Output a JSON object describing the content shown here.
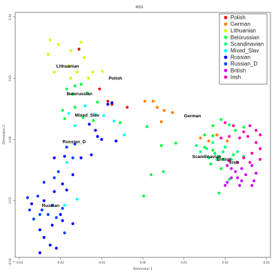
{
  "chart_data": {
    "type": "scatter",
    "title": "MDS",
    "xlabel": "Dimension 1",
    "ylabel": "Dimension 2",
    "xlim": [
      -0.031,
      0.031
    ],
    "ylim": [
      -0.0385,
      0.0415
    ],
    "xticks": [
      -0.03,
      -0.02,
      -0.01,
      0.0,
      0.01,
      0.02,
      0.03
    ],
    "xtick_labels": [
      "-0.03",
      "-0.02",
      "-0.01",
      "0.00",
      "0.01",
      "0.02",
      "0.03"
    ],
    "yticks": [
      -0.04,
      -0.02,
      0.0,
      0.02,
      0.04
    ],
    "ytick_labels": [
      "-0.04",
      "-0.02",
      "0.00",
      "0.02",
      "0.04"
    ],
    "legend_position": "top-right",
    "grid": false,
    "series": [
      {
        "name": "Polish",
        "color": "#ff0000",
        "points": [
          [
            -0.0155,
            0.0295
          ],
          [
            -0.0105,
            0.0165
          ],
          [
            -0.0085,
            0.0125
          ],
          [
            -0.0075,
            0.0115
          ],
          [
            -0.0038,
            0.0105
          ]
        ]
      },
      {
        "name": "German",
        "color": "#ff8000",
        "points": [
          [
            0.0005,
            0.0125
          ],
          [
            0.0025,
            0.0125
          ],
          [
            0.0035,
            0.0105
          ],
          [
            0.0052,
            0.0095
          ],
          [
            0.0072,
            0.0088
          ],
          [
            0.0045,
            0.0058
          ],
          [
            0.014,
            0.0005
          ],
          [
            0.016,
            -0.0005
          ],
          [
            0.018,
            0.0015
          ],
          [
            0.0205,
            -0.0005
          ]
        ]
      },
      {
        "name": "Lithuanian",
        "color": "#ccff00",
        "points": [
          [
            -0.0225,
            0.0325
          ],
          [
            -0.023,
            0.0278
          ],
          [
            -0.0205,
            0.031
          ],
          [
            -0.0175,
            0.029
          ],
          [
            -0.015,
            0.0318
          ],
          [
            -0.0142,
            0.0268
          ],
          [
            -0.018,
            0.024
          ],
          [
            -0.0122,
            0.022
          ],
          [
            -0.016,
            0.022
          ],
          [
            -0.0098,
            0.0222
          ],
          [
            -0.0132,
            0.02
          ],
          [
            -0.0215,
            0.022
          ],
          [
            -0.0175,
            0.02
          ]
        ]
      },
      {
        "name": "Belorussian",
        "color": "#00ff40",
        "points": [
          [
            -0.0185,
            0.0165
          ],
          [
            -0.0165,
            0.0175
          ],
          [
            -0.015,
            0.018
          ],
          [
            -0.017,
            0.0148
          ],
          [
            -0.0135,
            0.0152
          ],
          [
            -0.011,
            0.0122
          ],
          [
            -0.0165,
            0.0105
          ],
          [
            -0.0195,
            0.0095
          ],
          [
            -0.0145,
            0.0072
          ],
          [
            -0.019,
            0.0068
          ],
          [
            -0.012,
            0.0062
          ],
          [
            0.001,
            0.0042
          ],
          [
            -0.0055,
            0.0055
          ],
          [
            0.0045,
            -0.002
          ],
          [
            0.008,
            -0.0012
          ],
          [
            0.005,
            -0.0105
          ],
          [
            0.002,
            -0.0115
          ],
          [
            0.0002,
            -0.0185
          ],
          [
            0.015,
            -0.0025
          ],
          [
            0.017,
            -0.0035
          ],
          [
            0.0185,
            -0.0055
          ],
          [
            0.0195,
            -0.0065
          ],
          [
            0.0165,
            -0.008
          ],
          [
            0.0205,
            -0.0085
          ],
          [
            0.019,
            -0.0095
          ],
          [
            0.017,
            0.0045
          ],
          [
            0.019,
            0.0065
          ],
          [
            0.021,
            0.0048
          ],
          [
            0.0225,
            0.003
          ],
          [
            0.0245,
            0.004
          ],
          [
            0.015,
            0.0015
          ],
          [
            0.017,
            0.0012
          ],
          [
            0.022,
            -0.005
          ],
          [
            0.021,
            -0.013
          ],
          [
            0.0185,
            -0.0175
          ]
        ]
      },
      {
        "name": "Scandinavian",
        "color": "#00ff80",
        "points": [
          [
            0.013,
            -0.002
          ],
          [
            0.014,
            -0.004
          ],
          [
            0.0155,
            -0.003
          ],
          [
            0.016,
            -0.006
          ],
          [
            0.0175,
            -0.0045
          ],
          [
            0.018,
            -0.0065
          ],
          [
            0.02,
            -0.0025
          ],
          [
            0.0215,
            -0.0065
          ],
          [
            0.0195,
            -0.004
          ],
          [
            0.017,
            -0.001
          ],
          [
            0.023,
            -0.004
          ],
          [
            0.0245,
            -0.0055
          ]
        ]
      },
      {
        "name": "Mixed_Slav",
        "color": "#00ffff",
        "points": [
          [
            -0.018,
            0.0085
          ],
          [
            -0.0165,
            0.0045
          ],
          [
            -0.014,
            0.011
          ],
          [
            -0.0115,
            0.0082
          ],
          [
            -0.0095,
            0.0078
          ],
          [
            -0.007,
            0.006
          ],
          [
            -0.0045,
            0.0015
          ],
          [
            -0.0185,
            -0.0075
          ],
          [
            -0.019,
            -0.0215
          ],
          [
            -0.016,
            -0.0195
          ]
        ]
      },
      {
        "name": "Russian",
        "color": "#0000ff",
        "points": [
          [
            -0.0075,
            0.012
          ],
          [
            -0.0085,
            0.0115
          ],
          [
            -0.013,
            0.005
          ],
          [
            -0.0115,
            0.003
          ],
          [
            -0.011,
            0.001
          ],
          [
            -0.01,
            0.0
          ],
          [
            -0.0065,
            -0.0005
          ],
          [
            -0.0125,
            -0.005
          ],
          [
            -0.015,
            -0.006
          ],
          [
            -0.019,
            -0.0055
          ],
          [
            -0.0215,
            -0.006
          ],
          [
            -0.017,
            -0.0115
          ],
          [
            -0.0195,
            -0.0145
          ],
          [
            -0.0185,
            -0.0165
          ],
          [
            -0.0215,
            -0.017
          ],
          [
            -0.024,
            -0.02
          ],
          [
            -0.027,
            -0.021
          ],
          [
            -0.02,
            -0.0245
          ],
          [
            -0.0195,
            -0.0265
          ],
          [
            -0.017,
            -0.0275
          ],
          [
            -0.022,
            -0.028
          ],
          [
            -0.025,
            -0.0295
          ],
          [
            -0.024,
            -0.032
          ],
          [
            -0.0225,
            -0.0345
          ],
          [
            -0.021,
            -0.0355
          ],
          [
            -0.025,
            -0.037
          ]
        ]
      },
      {
        "name": "Russian_D",
        "color": "#0040ff",
        "points": [
          [
            -0.0165,
            -0.0015
          ],
          [
            -0.0185,
            -0.0025
          ],
          [
            -0.017,
            -0.006
          ],
          [
            -0.0205,
            -0.0105
          ],
          [
            -0.0215,
            -0.0125
          ],
          [
            -0.024,
            -0.014
          ],
          [
            -0.0255,
            -0.0185
          ],
          [
            -0.028,
            -0.019
          ],
          [
            -0.0275,
            -0.023
          ],
          [
            -0.0245,
            -0.023
          ],
          [
            -0.023,
            -0.0245
          ],
          [
            -0.022,
            -0.0215
          ],
          [
            -0.0195,
            -0.0225
          ],
          [
            -0.0265,
            -0.026
          ],
          [
            -0.025,
            -0.0245
          ],
          [
            -0.021,
            -0.0255
          ],
          [
            -0.019,
            -0.0305
          ]
        ]
      },
      {
        "name": "British",
        "color": "#cc00ff",
        "points": [
          [
            0.0205,
            -0.0085
          ],
          [
            0.0215,
            -0.0095
          ],
          [
            0.0225,
            -0.0105
          ],
          [
            0.024,
            -0.0095
          ],
          [
            0.025,
            -0.0115
          ],
          [
            0.023,
            -0.0125
          ],
          [
            0.0215,
            -0.0125
          ],
          [
            0.0205,
            -0.014
          ],
          [
            0.0265,
            -0.0085
          ],
          [
            0.0275,
            -0.011
          ],
          [
            0.027,
            -0.0135
          ],
          [
            0.024,
            -0.0135
          ],
          [
            0.0235,
            -0.015
          ],
          [
            0.02,
            -0.015
          ],
          [
            0.0265,
            -0.015
          ]
        ]
      },
      {
        "name": "Irish",
        "color": "#ff00aa",
        "points": [
          [
            0.02,
            0.0055
          ],
          [
            0.022,
            0.0045
          ],
          [
            0.0245,
            0.0025
          ],
          [
            0.026,
            0.0045
          ],
          [
            0.0275,
            0.003
          ],
          [
            0.0285,
            0.0015
          ],
          [
            0.0255,
            0.001
          ],
          [
            0.0235,
            0.0005
          ],
          [
            0.021,
            0.001
          ],
          [
            0.019,
            0.0005
          ],
          [
            0.0275,
            -0.001
          ],
          [
            0.0285,
            -0.003
          ],
          [
            0.0265,
            -0.0045
          ],
          [
            0.0245,
            -0.006
          ],
          [
            0.023,
            -0.0075
          ],
          [
            0.021,
            -0.007
          ],
          [
            0.0285,
            -0.0065
          ],
          [
            0.026,
            -0.0075
          ]
        ]
      }
    ],
    "annotations": [
      {
        "text": "Lithuanian",
        "x": -0.021,
        "y": 0.0235
      },
      {
        "text": "Polish",
        "x": -0.0083,
        "y": 0.0195
      },
      {
        "text": "Belorussian",
        "x": -0.0185,
        "y": 0.0145
      },
      {
        "text": "Mixed_Slav",
        "x": -0.0165,
        "y": 0.0075
      },
      {
        "text": "German",
        "x": 0.01,
        "y": 0.0072
      },
      {
        "text": "Russian_D",
        "x": -0.0195,
        "y": -0.0012
      },
      {
        "text": "Scandinavian",
        "x": 0.012,
        "y": -0.006
      },
      {
        "text": "British",
        "x": 0.018,
        "y": -0.007
      },
      {
        "text": "Irish",
        "x": 0.021,
        "y": -0.008
      },
      {
        "text": "Russian",
        "x": -0.0245,
        "y": -0.022
      }
    ]
  }
}
